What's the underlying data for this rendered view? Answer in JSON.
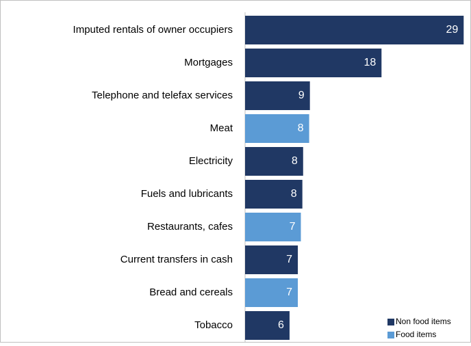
{
  "chart_data": {
    "type": "barh",
    "categories": [
      "Imputed rentals of owner occupiers",
      "Mortgages",
      "Telephone and telefax services",
      "Meat",
      "Electricity",
      "Fuels and lubricants",
      "Restaurants, cafes",
      "Current transfers in cash",
      "Bread and cereals",
      "Tobacco"
    ],
    "series": [
      {
        "name": "Non food items",
        "color": "#203864",
        "values": [
          29,
          18.1,
          8.6,
          null,
          7.7,
          7.6,
          null,
          7.0,
          null,
          5.9
        ],
        "value_labels": [
          "29",
          "18",
          "9",
          null,
          "8",
          "8",
          null,
          "7",
          null,
          "6"
        ]
      },
      {
        "name": "Food items",
        "color": "#5b9bd5",
        "values": [
          null,
          null,
          null,
          8.5,
          null,
          null,
          7.4,
          null,
          7.0,
          null
        ],
        "value_labels": [
          null,
          null,
          null,
          "8",
          null,
          null,
          "7",
          null,
          "7",
          null
        ]
      }
    ],
    "xlim": [
      0,
      29.7
    ],
    "legend": "lower right"
  }
}
